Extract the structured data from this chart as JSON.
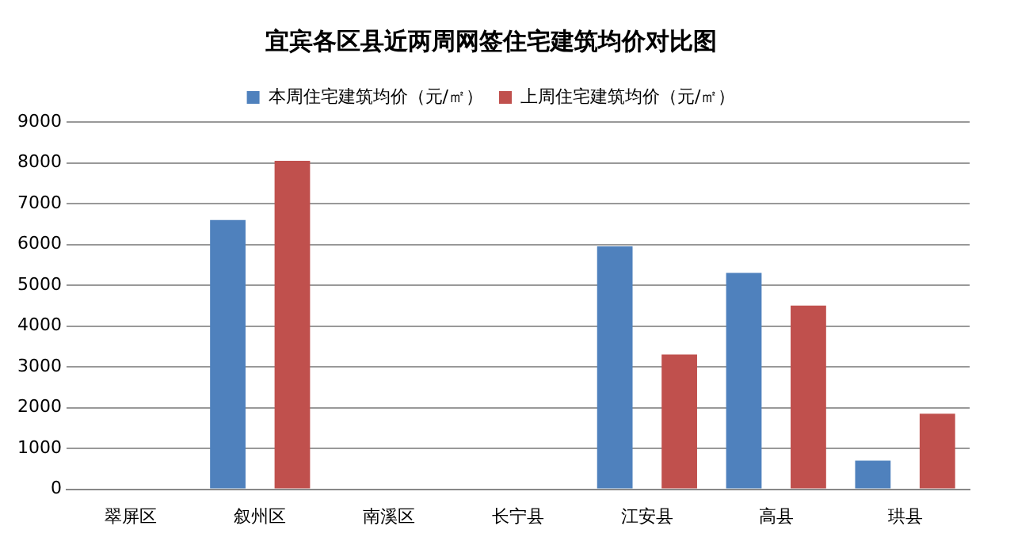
{
  "chart_data": {
    "type": "bar",
    "title": "宜宾各区县近两周网签住宅建筑均价对比图",
    "categories": [
      "翠屏区",
      "叙州区",
      "南溪区",
      "长宁县",
      "江安县",
      "高县",
      "珙县"
    ],
    "series": [
      {
        "name": "本周住宅建筑均价（元/㎡）",
        "color": "#4f81bd",
        "values": [
          null,
          6600,
          null,
          null,
          5950,
          5300,
          700
        ]
      },
      {
        "name": "上周住宅建筑均价（元/㎡）",
        "color": "#c0504d",
        "values": [
          null,
          8050,
          null,
          null,
          3300,
          4500,
          1850
        ]
      }
    ],
    "ylim": [
      0,
      9000
    ],
    "yticks": [
      0,
      1000,
      2000,
      3000,
      4000,
      5000,
      6000,
      7000,
      8000,
      9000
    ],
    "grid": "y",
    "legend": "top"
  }
}
